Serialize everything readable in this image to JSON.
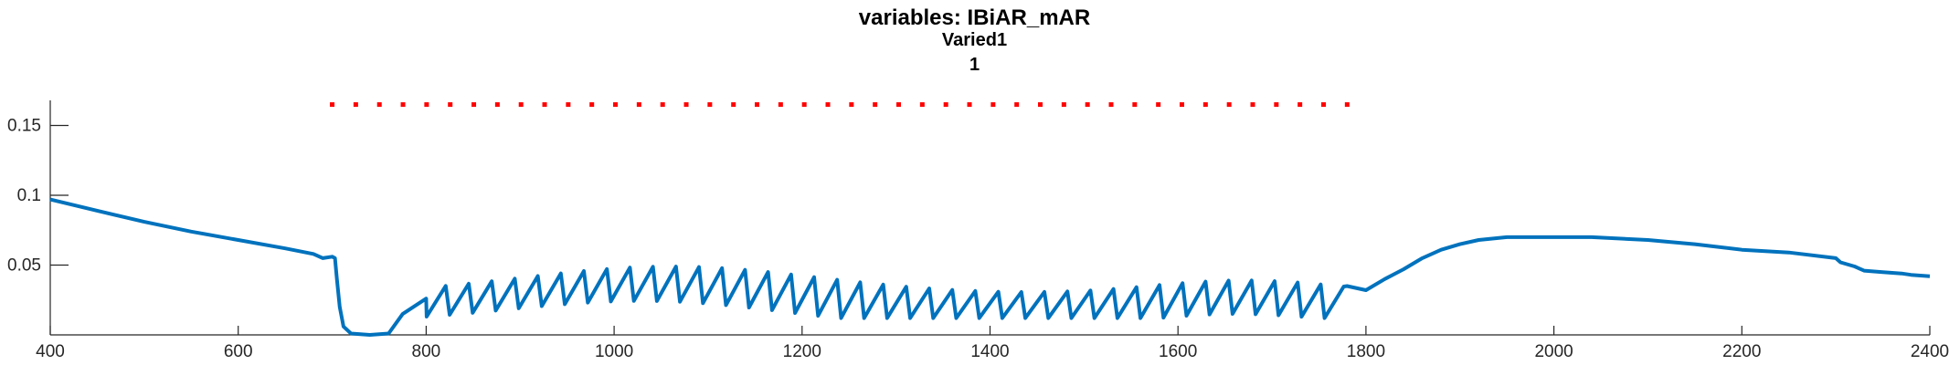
{
  "chart_data": {
    "type": "line",
    "title": "variables: IBiAR_mAR",
    "subtitle": "Varied1",
    "subtitle2": "1",
    "xlabel": "",
    "ylabel": "",
    "xlim": [
      400,
      2400
    ],
    "ylim": [
      0,
      0.168
    ],
    "xticks": [
      400,
      600,
      800,
      1000,
      1200,
      1400,
      1600,
      1800,
      2000,
      2200,
      2400
    ],
    "xtick_labels": [
      "400",
      "600",
      "800",
      "1000",
      "1200",
      "1400",
      "1600",
      "1800",
      "2000",
      "2200",
      "2400"
    ],
    "yticks": [
      0.05,
      0.1,
      0.15
    ],
    "ytick_labels": [
      "0.05",
      "0.1",
      "0.15"
    ],
    "grid": false,
    "series": [
      {
        "name": "IBiAR_mAR",
        "color": "#0072BD",
        "x": [
          400,
          450,
          500,
          550,
          600,
          650,
          680,
          690,
          700,
          703,
          705,
          708,
          712,
          720,
          740,
          760,
          775,
          800,
          1780,
          1800,
          1820,
          1840,
          1860,
          1880,
          1900,
          1920,
          1950,
          2000,
          2040,
          2100,
          2150,
          2200,
          2250,
          2300,
          2305,
          2320,
          2330,
          2350,
          2370,
          2380,
          2400
        ],
        "y": [
          0.097,
          0.089,
          0.081,
          0.074,
          0.068,
          0.062,
          0.058,
          0.055,
          0.056,
          0.055,
          0.04,
          0.02,
          0.006,
          0.001,
          0.0,
          0.001,
          0.015,
          0.026,
          0.035,
          0.032,
          0.04,
          0.047,
          0.055,
          0.061,
          0.065,
          0.068,
          0.07,
          0.07,
          0.07,
          0.068,
          0.065,
          0.061,
          0.059,
          0.055,
          0.052,
          0.049,
          0.046,
          0.045,
          0.044,
          0.043,
          0.042
        ]
      },
      {
        "name": "markers",
        "color": "#FF0000",
        "y_level": 0.165,
        "x_start": 700,
        "x_end": 1780,
        "count": 44
      }
    ]
  }
}
